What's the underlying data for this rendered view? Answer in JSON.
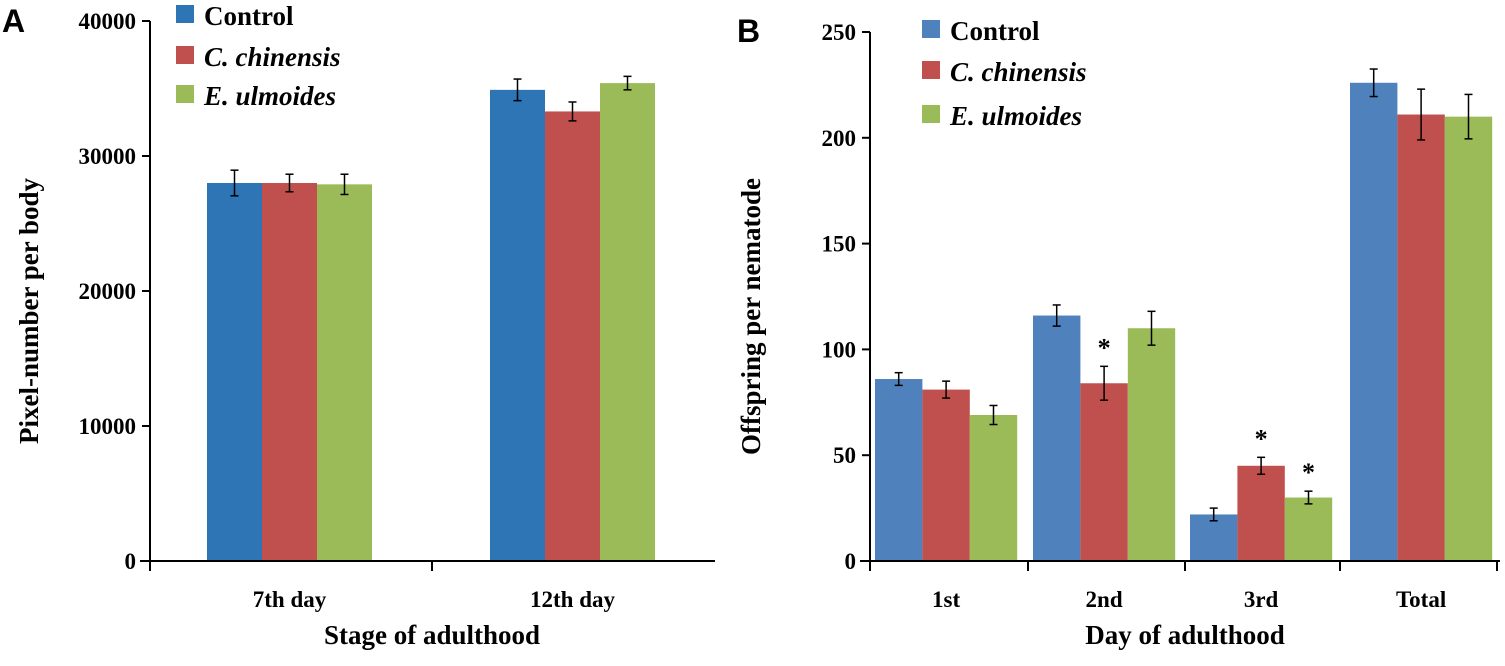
{
  "chart_data": [
    {
      "panel_label": "A",
      "type": "bar",
      "xlabel": "Stage of adulthood",
      "ylabel": "Pixel-number per body",
      "categories": [
        "7th day",
        "12th day"
      ],
      "ylim": [
        0,
        40000
      ],
      "yticks": [
        "0",
        "10000",
        "20000",
        "30000",
        "40000"
      ],
      "grid": false,
      "legend_position": "top-left",
      "series": [
        {
          "name": "Control",
          "italic": false,
          "color": "#2E75B6",
          "values": [
            28000,
            34900
          ],
          "errors": [
            950,
            800
          ],
          "significant": [
            false,
            false
          ]
        },
        {
          "name": "C. chinensis",
          "italic": true,
          "color": "#C0504D",
          "values": [
            28000,
            33300
          ],
          "errors": [
            650,
            700
          ],
          "significant": [
            false,
            false
          ]
        },
        {
          "name": "E. ulmoides",
          "italic": true,
          "color": "#9BBB59",
          "values": [
            27900,
            35400
          ],
          "errors": [
            750,
            500
          ],
          "significant": [
            false,
            false
          ]
        }
      ]
    },
    {
      "panel_label": "B",
      "type": "bar",
      "xlabel": "Day of adulthood",
      "ylabel": "Offspring per nematode",
      "categories": [
        "1st",
        "2nd",
        "3rd",
        "Total"
      ],
      "ylim": [
        0,
        250
      ],
      "yticks": [
        "0",
        "50",
        "100",
        "150",
        "200",
        "250"
      ],
      "grid": false,
      "legend_position": "top-left",
      "significance_marker": "*",
      "series": [
        {
          "name": "Control",
          "italic": false,
          "color": "#4F81BD",
          "values": [
            86,
            116,
            22,
            226
          ],
          "errors": [
            3,
            5,
            3,
            6.5
          ],
          "significant": [
            false,
            false,
            false,
            false
          ]
        },
        {
          "name": "C. chinensis",
          "italic": true,
          "color": "#C0504D",
          "values": [
            81,
            84,
            45,
            211
          ],
          "errors": [
            4,
            8,
            4,
            12
          ],
          "significant": [
            false,
            true,
            true,
            false
          ]
        },
        {
          "name": "E. ulmoides",
          "italic": true,
          "color": "#9BBB59",
          "values": [
            69,
            110,
            30,
            210
          ],
          "errors": [
            4.5,
            8,
            3,
            10.5
          ],
          "significant": [
            false,
            false,
            true,
            false
          ]
        }
      ]
    }
  ]
}
